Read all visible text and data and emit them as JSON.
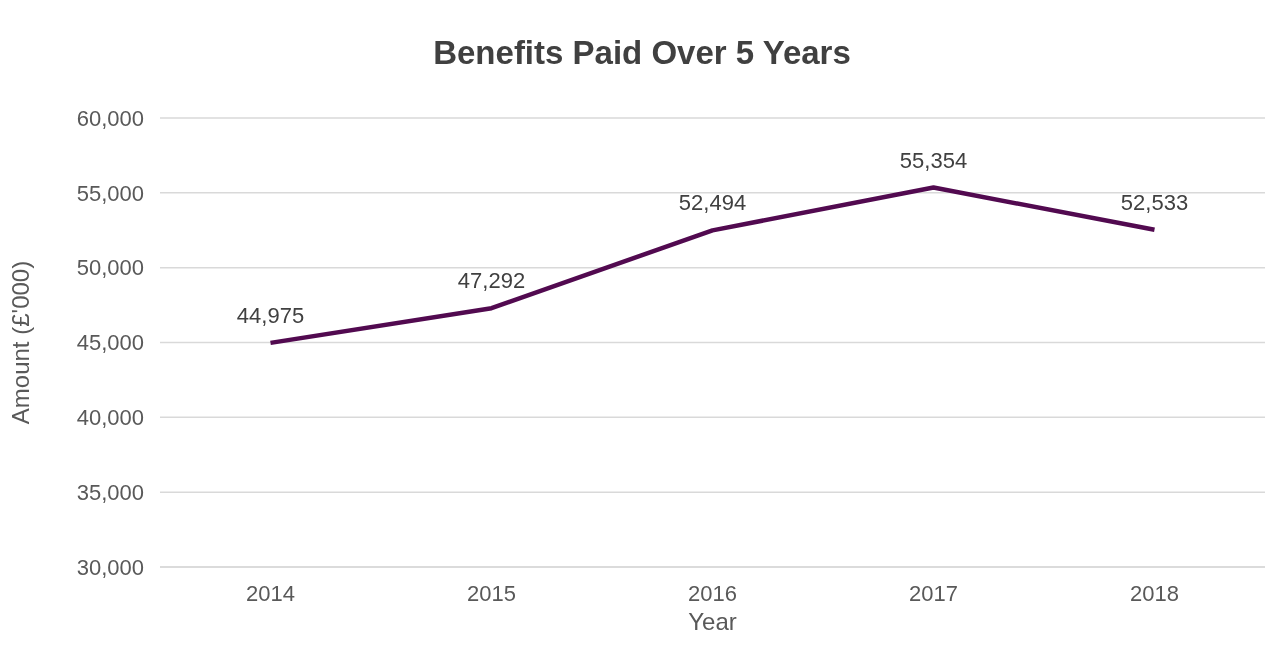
{
  "chart_data": {
    "type": "line",
    "title": "Benefits Paid Over 5 Years",
    "xlabel": "Year",
    "ylabel": "Amount (£'000)",
    "categories": [
      "2014",
      "2015",
      "2016",
      "2017",
      "2018"
    ],
    "series": [
      {
        "color": "#520a50",
        "values": [
          44975,
          47292,
          52494,
          55354,
          52533
        ],
        "value_labels": [
          "44,975",
          "47,292",
          "52,494",
          "55,354",
          "52,533"
        ]
      }
    ],
    "ylim": [
      30000,
      60000
    ],
    "yticks": [
      {
        "value": 30000,
        "label": "30,000"
      },
      {
        "value": 35000,
        "label": "35,000"
      },
      {
        "value": 40000,
        "label": "40,000"
      },
      {
        "value": 45000,
        "label": "45,000"
      },
      {
        "value": 50000,
        "label": "50,000"
      },
      {
        "value": 55000,
        "label": "55,000"
      },
      {
        "value": 60000,
        "label": "60,000"
      }
    ],
    "grid": "y",
    "marker": "none",
    "line_style": "solid",
    "legend": false
  }
}
